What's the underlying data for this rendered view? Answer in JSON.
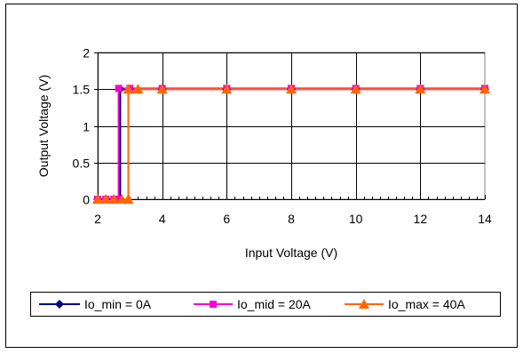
{
  "chart_data": {
    "type": "line",
    "title": "",
    "xlabel": "Input Voltage (V)",
    "ylabel": "Output Voltage (V)",
    "xlim": [
      2,
      14
    ],
    "ylim": [
      0,
      2
    ],
    "x_ticks": [
      "2",
      "4",
      "6",
      "8",
      "10",
      "12",
      "14"
    ],
    "y_ticks": [
      "0",
      "0.5",
      "1",
      "1.5",
      "2"
    ],
    "x_tick_values": [
      2,
      4,
      6,
      8,
      10,
      12,
      14
    ],
    "y_tick_values": [
      0,
      0.5,
      1,
      1.5,
      2
    ],
    "grid": true,
    "legend_position": "bottom",
    "series": [
      {
        "name": "Io_min = 0A",
        "color": "#000080",
        "marker": "diamond",
        "x": [
          2.0,
          2.25,
          2.5,
          2.7,
          2.7,
          3.0,
          4.0,
          6.0,
          8.0,
          10.0,
          12.0,
          14.0
        ],
        "y": [
          0,
          0,
          0,
          0,
          1.5,
          1.5,
          1.5,
          1.5,
          1.5,
          1.5,
          1.5,
          1.5
        ]
      },
      {
        "name": "Io_mid = 20A",
        "color": "#ff00cc",
        "marker": "square",
        "x": [
          2.0,
          2.25,
          2.5,
          2.65,
          2.65,
          3.0,
          4.0,
          6.0,
          8.0,
          10.0,
          12.0,
          14.0
        ],
        "y": [
          0,
          0,
          0,
          0,
          1.51,
          1.51,
          1.51,
          1.51,
          1.51,
          1.51,
          1.51,
          1.51
        ]
      },
      {
        "name": "Io_max = 40A",
        "color": "#ff6600",
        "marker": "triangle",
        "x": [
          2.0,
          2.25,
          2.5,
          2.75,
          2.95,
          2.95,
          3.25,
          4.0,
          6.0,
          8.0,
          10.0,
          12.0,
          14.0
        ],
        "y": [
          0,
          0,
          0,
          0,
          0,
          1.5,
          1.5,
          1.5,
          1.5,
          1.5,
          1.5,
          1.5,
          1.5
        ]
      }
    ]
  }
}
